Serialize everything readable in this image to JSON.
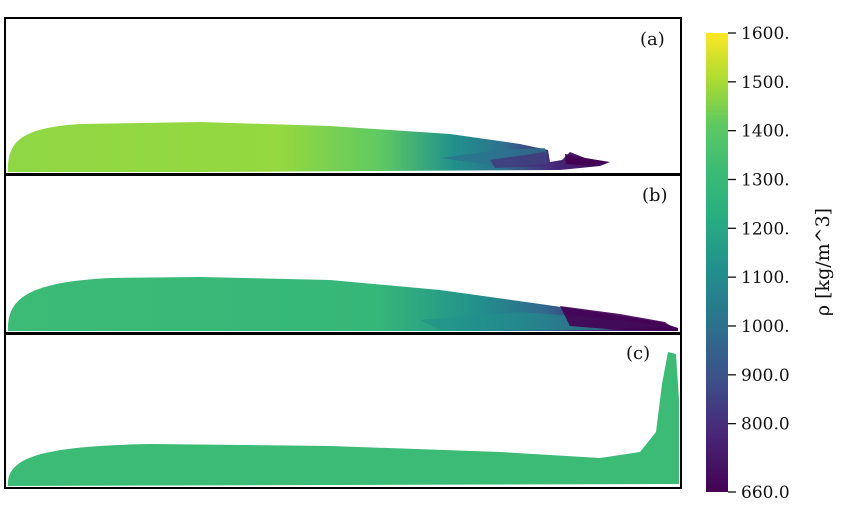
{
  "chart_data": {
    "type": "heatmap",
    "panels": [
      {
        "label": "(a)",
        "fill": "mixed: ~1380–1450 body, dropping to ~660–900 toward the tip"
      },
      {
        "label": "(b)",
        "fill": "mixed: ~1300 body, dropping to ~660–800 toward the tip"
      },
      {
        "label": "(c)",
        "fill": "uniform ~1300"
      }
    ],
    "colorbar": {
      "title": "ρ [kg/m^3]",
      "colormap": "viridis",
      "range": [
        660,
        1600
      ],
      "ticks": [
        {
          "value": 1600,
          "label": "1600."
        },
        {
          "value": 1500,
          "label": "1500."
        },
        {
          "value": 1400,
          "label": "1400."
        },
        {
          "value": 1300,
          "label": "1300."
        },
        {
          "value": 1200,
          "label": "1200."
        },
        {
          "value": 1100,
          "label": "1100."
        },
        {
          "value": 1000,
          "label": "1000."
        },
        {
          "value": 900,
          "label": "900.0"
        },
        {
          "value": 800,
          "label": "800.0"
        },
        {
          "value": 660,
          "label": "660.0"
        }
      ]
    },
    "colors": {
      "dark_purple": "#440154",
      "purple": "#482878",
      "blue": "#3b528b",
      "teal_blue": "#2c728e",
      "teal": "#21918c",
      "green_teal": "#28ae80",
      "green": "#3bbb75",
      "light_green": "#5ec962",
      "yellow_green": "#addc30",
      "yellow": "#fde725"
    }
  }
}
